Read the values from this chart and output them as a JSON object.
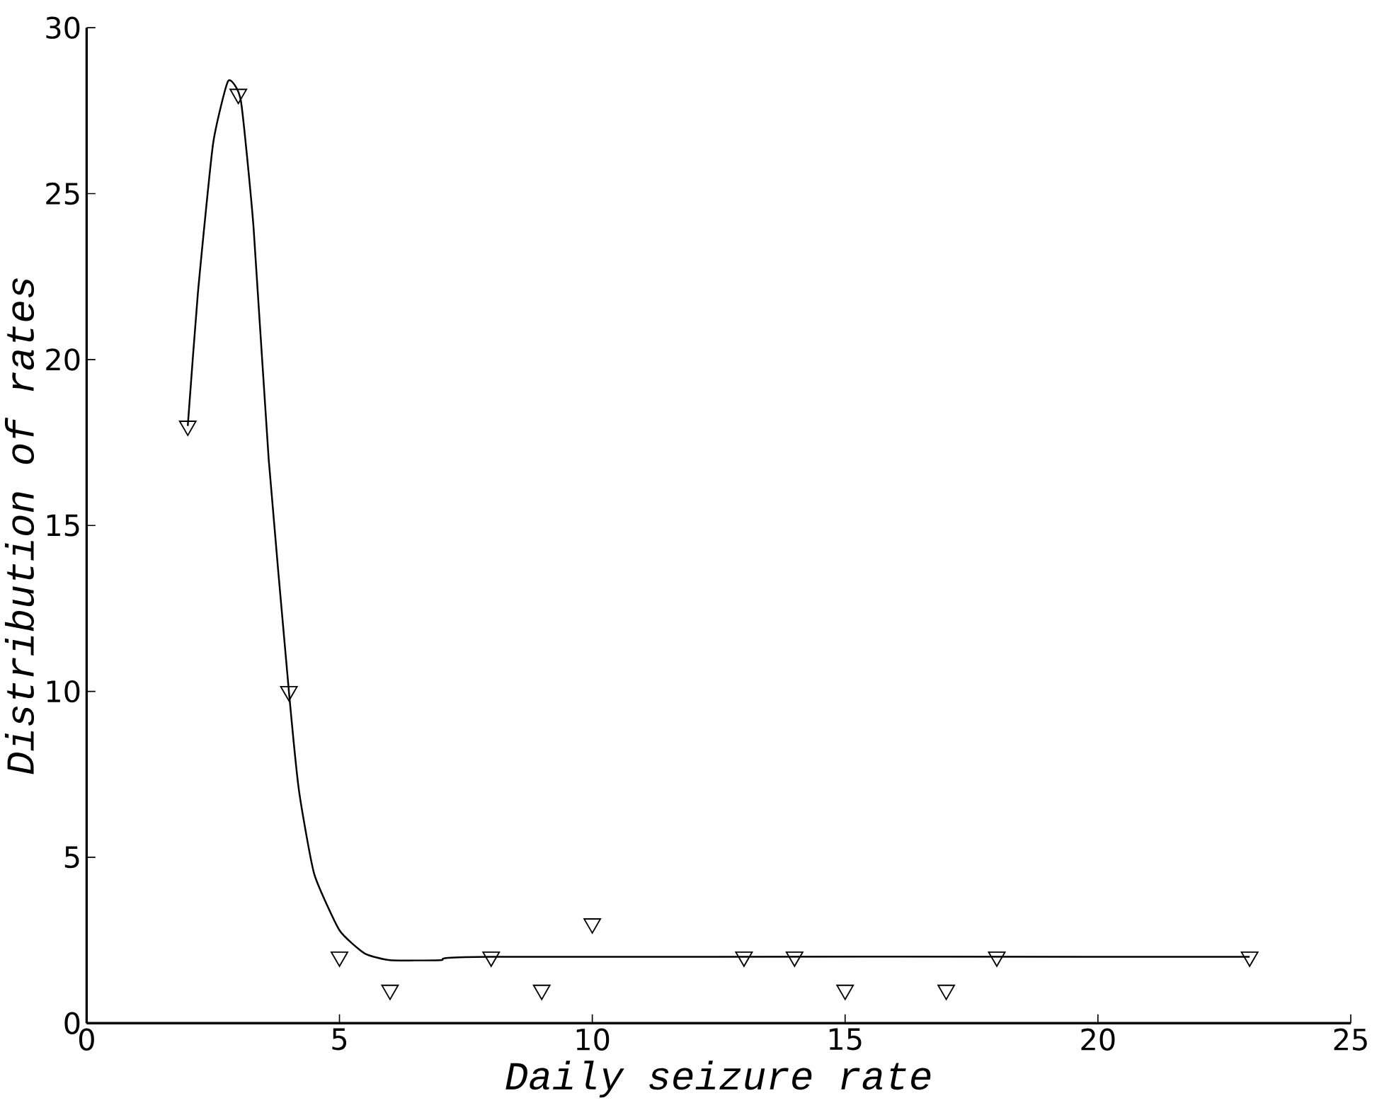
{
  "chart_data": {
    "type": "scatter",
    "xlabel": "Daily seizure rate",
    "ylabel": "Distribution of rates",
    "xlim": [
      0,
      25
    ],
    "ylim": [
      0,
      30
    ],
    "xticks": [
      0,
      5,
      10,
      15,
      20,
      25
    ],
    "yticks": [
      0,
      5,
      10,
      15,
      20,
      25,
      30
    ],
    "marker": "triangle",
    "series": [
      {
        "color": "#000000",
        "x": [
          2,
          3,
          4,
          5,
          6,
          8,
          9,
          10,
          13,
          14,
          15,
          17,
          18,
          23
        ],
        "values": [
          18,
          28,
          10,
          2,
          1,
          2,
          1,
          3,
          2,
          2,
          1,
          1,
          2,
          2
        ]
      },
      {
        "type": "line",
        "color": "#000000",
        "marker": "none",
        "line_style": "solid",
        "x": [
          2,
          2.2,
          2.5,
          2.8,
          3.05,
          3.3,
          3.6,
          4,
          4.2,
          4.5,
          5,
          5.5,
          6,
          7,
          8,
          23
        ],
        "values": [
          18,
          22,
          26.5,
          28.4,
          27.8,
          24,
          17,
          10,
          7,
          4.5,
          2.8,
          2.1,
          1.9,
          1.9,
          2,
          2
        ]
      }
    ]
  }
}
